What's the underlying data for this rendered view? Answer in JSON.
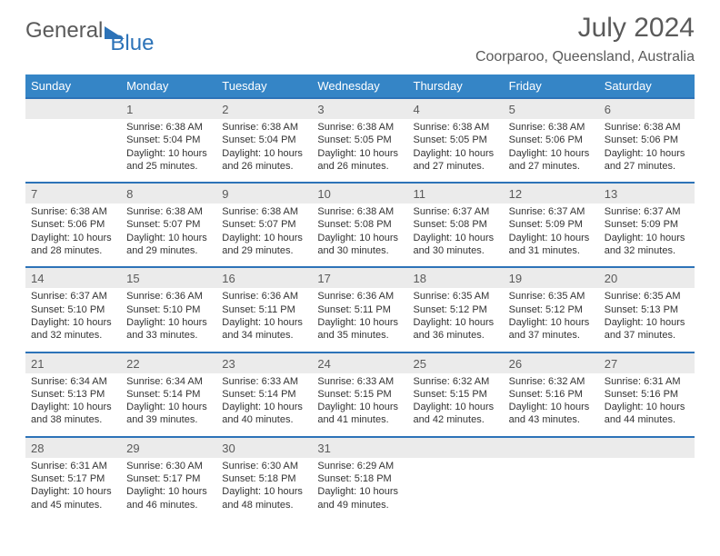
{
  "brand": {
    "part1": "General",
    "part2": "Blue"
  },
  "title": "July 2024",
  "location": "Coorparoo, Queensland, Australia",
  "colors": {
    "header_bg": "#3585c6",
    "header_text": "#ffffff",
    "border": "#2d73b8",
    "daynum_bg": "#ebebeb",
    "text": "#5a5a5a"
  },
  "day_headers": [
    "Sunday",
    "Monday",
    "Tuesday",
    "Wednesday",
    "Thursday",
    "Friday",
    "Saturday"
  ],
  "weeks": [
    [
      {
        "n": "",
        "lines": []
      },
      {
        "n": "1",
        "lines": [
          "Sunrise: 6:38 AM",
          "Sunset: 5:04 PM",
          "Daylight: 10 hours",
          "and 25 minutes."
        ]
      },
      {
        "n": "2",
        "lines": [
          "Sunrise: 6:38 AM",
          "Sunset: 5:04 PM",
          "Daylight: 10 hours",
          "and 26 minutes."
        ]
      },
      {
        "n": "3",
        "lines": [
          "Sunrise: 6:38 AM",
          "Sunset: 5:05 PM",
          "Daylight: 10 hours",
          "and 26 minutes."
        ]
      },
      {
        "n": "4",
        "lines": [
          "Sunrise: 6:38 AM",
          "Sunset: 5:05 PM",
          "Daylight: 10 hours",
          "and 27 minutes."
        ]
      },
      {
        "n": "5",
        "lines": [
          "Sunrise: 6:38 AM",
          "Sunset: 5:06 PM",
          "Daylight: 10 hours",
          "and 27 minutes."
        ]
      },
      {
        "n": "6",
        "lines": [
          "Sunrise: 6:38 AM",
          "Sunset: 5:06 PM",
          "Daylight: 10 hours",
          "and 27 minutes."
        ]
      }
    ],
    [
      {
        "n": "7",
        "lines": [
          "Sunrise: 6:38 AM",
          "Sunset: 5:06 PM",
          "Daylight: 10 hours",
          "and 28 minutes."
        ]
      },
      {
        "n": "8",
        "lines": [
          "Sunrise: 6:38 AM",
          "Sunset: 5:07 PM",
          "Daylight: 10 hours",
          "and 29 minutes."
        ]
      },
      {
        "n": "9",
        "lines": [
          "Sunrise: 6:38 AM",
          "Sunset: 5:07 PM",
          "Daylight: 10 hours",
          "and 29 minutes."
        ]
      },
      {
        "n": "10",
        "lines": [
          "Sunrise: 6:38 AM",
          "Sunset: 5:08 PM",
          "Daylight: 10 hours",
          "and 30 minutes."
        ]
      },
      {
        "n": "11",
        "lines": [
          "Sunrise: 6:37 AM",
          "Sunset: 5:08 PM",
          "Daylight: 10 hours",
          "and 30 minutes."
        ]
      },
      {
        "n": "12",
        "lines": [
          "Sunrise: 6:37 AM",
          "Sunset: 5:09 PM",
          "Daylight: 10 hours",
          "and 31 minutes."
        ]
      },
      {
        "n": "13",
        "lines": [
          "Sunrise: 6:37 AM",
          "Sunset: 5:09 PM",
          "Daylight: 10 hours",
          "and 32 minutes."
        ]
      }
    ],
    [
      {
        "n": "14",
        "lines": [
          "Sunrise: 6:37 AM",
          "Sunset: 5:10 PM",
          "Daylight: 10 hours",
          "and 32 minutes."
        ]
      },
      {
        "n": "15",
        "lines": [
          "Sunrise: 6:36 AM",
          "Sunset: 5:10 PM",
          "Daylight: 10 hours",
          "and 33 minutes."
        ]
      },
      {
        "n": "16",
        "lines": [
          "Sunrise: 6:36 AM",
          "Sunset: 5:11 PM",
          "Daylight: 10 hours",
          "and 34 minutes."
        ]
      },
      {
        "n": "17",
        "lines": [
          "Sunrise: 6:36 AM",
          "Sunset: 5:11 PM",
          "Daylight: 10 hours",
          "and 35 minutes."
        ]
      },
      {
        "n": "18",
        "lines": [
          "Sunrise: 6:35 AM",
          "Sunset: 5:12 PM",
          "Daylight: 10 hours",
          "and 36 minutes."
        ]
      },
      {
        "n": "19",
        "lines": [
          "Sunrise: 6:35 AM",
          "Sunset: 5:12 PM",
          "Daylight: 10 hours",
          "and 37 minutes."
        ]
      },
      {
        "n": "20",
        "lines": [
          "Sunrise: 6:35 AM",
          "Sunset: 5:13 PM",
          "Daylight: 10 hours",
          "and 37 minutes."
        ]
      }
    ],
    [
      {
        "n": "21",
        "lines": [
          "Sunrise: 6:34 AM",
          "Sunset: 5:13 PM",
          "Daylight: 10 hours",
          "and 38 minutes."
        ]
      },
      {
        "n": "22",
        "lines": [
          "Sunrise: 6:34 AM",
          "Sunset: 5:14 PM",
          "Daylight: 10 hours",
          "and 39 minutes."
        ]
      },
      {
        "n": "23",
        "lines": [
          "Sunrise: 6:33 AM",
          "Sunset: 5:14 PM",
          "Daylight: 10 hours",
          "and 40 minutes."
        ]
      },
      {
        "n": "24",
        "lines": [
          "Sunrise: 6:33 AM",
          "Sunset: 5:15 PM",
          "Daylight: 10 hours",
          "and 41 minutes."
        ]
      },
      {
        "n": "25",
        "lines": [
          "Sunrise: 6:32 AM",
          "Sunset: 5:15 PM",
          "Daylight: 10 hours",
          "and 42 minutes."
        ]
      },
      {
        "n": "26",
        "lines": [
          "Sunrise: 6:32 AM",
          "Sunset: 5:16 PM",
          "Daylight: 10 hours",
          "and 43 minutes."
        ]
      },
      {
        "n": "27",
        "lines": [
          "Sunrise: 6:31 AM",
          "Sunset: 5:16 PM",
          "Daylight: 10 hours",
          "and 44 minutes."
        ]
      }
    ],
    [
      {
        "n": "28",
        "lines": [
          "Sunrise: 6:31 AM",
          "Sunset: 5:17 PM",
          "Daylight: 10 hours",
          "and 45 minutes."
        ]
      },
      {
        "n": "29",
        "lines": [
          "Sunrise: 6:30 AM",
          "Sunset: 5:17 PM",
          "Daylight: 10 hours",
          "and 46 minutes."
        ]
      },
      {
        "n": "30",
        "lines": [
          "Sunrise: 6:30 AM",
          "Sunset: 5:18 PM",
          "Daylight: 10 hours",
          "and 48 minutes."
        ]
      },
      {
        "n": "31",
        "lines": [
          "Sunrise: 6:29 AM",
          "Sunset: 5:18 PM",
          "Daylight: 10 hours",
          "and 49 minutes."
        ]
      },
      {
        "n": "",
        "lines": []
      },
      {
        "n": "",
        "lines": []
      },
      {
        "n": "",
        "lines": []
      }
    ]
  ]
}
